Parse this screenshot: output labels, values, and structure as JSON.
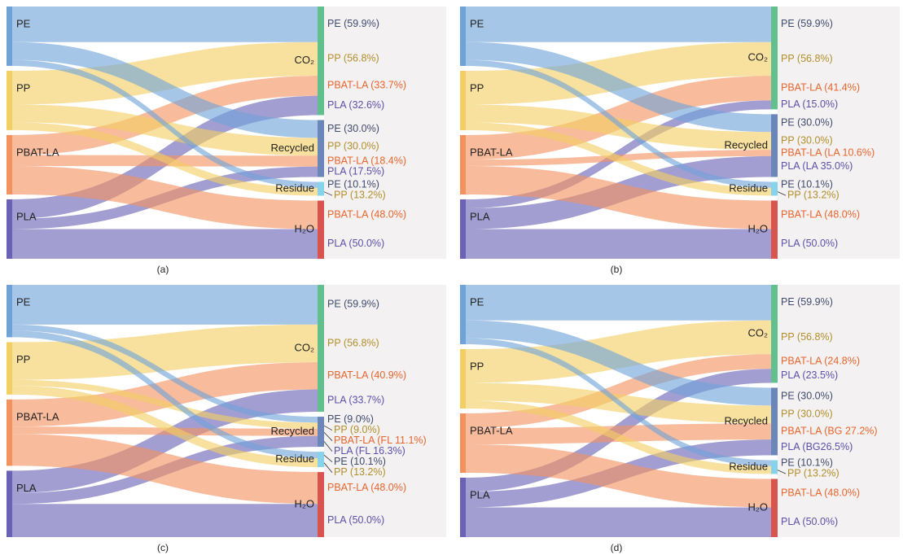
{
  "chart_data": [
    {
      "type": "sankey",
      "caption": "(a)",
      "sources": [
        "PE",
        "PP",
        "PBAT-LA",
        "PLA"
      ],
      "targets": [
        "CO₂",
        "Recycled",
        "Residue",
        "H₂O"
      ],
      "source_colors": [
        "#6fa3d8",
        "#f3cf63",
        "#f3925f",
        "#6a62b4"
      ],
      "target_colors": [
        "#62c08f",
        "#6b86b8",
        "#86d3ea",
        "#d9534f"
      ],
      "label_colors": [
        "#3f4b6e",
        "#b38f2c",
        "#e8652d",
        "#5b50a8"
      ],
      "links": [
        {
          "source": "PE",
          "target": "CO₂",
          "value": 59.9,
          "value_label": "PE (59.9%)"
        },
        {
          "source": "PP",
          "target": "CO₂",
          "value": 56.8,
          "value_label": "PP (56.8%)"
        },
        {
          "source": "PBAT-LA",
          "target": "CO₂",
          "value": 33.7,
          "value_label": "PBAT-LA (33.7%)"
        },
        {
          "source": "PLA",
          "target": "CO₂",
          "value": 32.6,
          "value_label": "PLA (32.6%)"
        },
        {
          "source": "PE",
          "target": "Recycled",
          "value": 30.0,
          "value_label": "PE (30.0%)"
        },
        {
          "source": "PP",
          "target": "Recycled",
          "value": 30.0,
          "value_label": "PP (30.0%)"
        },
        {
          "source": "PBAT-LA",
          "target": "Recycled",
          "value": 18.4,
          "value_label": "PBAT-LA (18.4%)"
        },
        {
          "source": "PLA",
          "target": "Recycled",
          "value": 17.5,
          "value_label": "PLA (17.5%)"
        },
        {
          "source": "PE",
          "target": "Residue",
          "value": 10.1,
          "value_label": "PE (10.1%)"
        },
        {
          "source": "PP",
          "target": "Residue",
          "value": 13.2,
          "value_label": "PP (13.2%)"
        },
        {
          "source": "PBAT-LA",
          "target": "H₂O",
          "value": 48.0,
          "value_label": "PBAT-LA (48.0%)"
        },
        {
          "source": "PLA",
          "target": "H₂O",
          "value": 50.0,
          "value_label": "PLA (50.0%)"
        }
      ]
    },
    {
      "type": "sankey",
      "caption": "(b)",
      "sources": [
        "PE",
        "PP",
        "PBAT-LA",
        "PLA"
      ],
      "targets": [
        "CO₂",
        "Recycled",
        "Residue",
        "H₂O"
      ],
      "source_colors": [
        "#6fa3d8",
        "#f3cf63",
        "#f3925f",
        "#6a62b4"
      ],
      "target_colors": [
        "#62c08f",
        "#6b86b8",
        "#86d3ea",
        "#d9534f"
      ],
      "label_colors": [
        "#3f4b6e",
        "#b38f2c",
        "#e8652d",
        "#5b50a8"
      ],
      "links": [
        {
          "source": "PE",
          "target": "CO₂",
          "value": 59.9,
          "value_label": "PE (59.9%)"
        },
        {
          "source": "PP",
          "target": "CO₂",
          "value": 56.8,
          "value_label": "PP (56.8%)"
        },
        {
          "source": "PBAT-LA",
          "target": "CO₂",
          "value": 41.4,
          "value_label": "PBAT-LA (41.4%)"
        },
        {
          "source": "PLA",
          "target": "CO₂",
          "value": 15.0,
          "value_label": "PLA (15.0%)"
        },
        {
          "source": "PE",
          "target": "Recycled",
          "value": 30.0,
          "value_label": "PE (30.0%)"
        },
        {
          "source": "PP",
          "target": "Recycled",
          "value": 30.0,
          "value_label": "PP (30.0%)"
        },
        {
          "source": "PBAT-LA",
          "target": "Recycled",
          "value": 10.6,
          "value_label": "PBAT-LA (LA 10.6%)"
        },
        {
          "source": "PLA",
          "target": "Recycled",
          "value": 35.0,
          "value_label": "PLA (LA 35.0%)"
        },
        {
          "source": "PE",
          "target": "Residue",
          "value": 10.1,
          "value_label": "PE (10.1%)"
        },
        {
          "source": "PP",
          "target": "Residue",
          "value": 13.2,
          "value_label": "PP (13.2%)"
        },
        {
          "source": "PBAT-LA",
          "target": "H₂O",
          "value": 48.0,
          "value_label": "PBAT-LA (48.0%)"
        },
        {
          "source": "PLA",
          "target": "H₂O",
          "value": 50.0,
          "value_label": "PLA (50.0%)"
        }
      ]
    },
    {
      "type": "sankey",
      "caption": "(c)",
      "sources": [
        "PE",
        "PP",
        "PBAT-LA",
        "PLA"
      ],
      "targets": [
        "CO₂",
        "Recycled",
        "Residue",
        "H₂O"
      ],
      "source_colors": [
        "#6fa3d8",
        "#f3cf63",
        "#f3925f",
        "#6a62b4"
      ],
      "target_colors": [
        "#62c08f",
        "#6b86b8",
        "#86d3ea",
        "#d9534f"
      ],
      "label_colors": [
        "#3f4b6e",
        "#b38f2c",
        "#e8652d",
        "#5b50a8"
      ],
      "links": [
        {
          "source": "PE",
          "target": "CO₂",
          "value": 59.9,
          "value_label": "PE (59.9%)"
        },
        {
          "source": "PP",
          "target": "CO₂",
          "value": 56.8,
          "value_label": "PP (56.8%)"
        },
        {
          "source": "PBAT-LA",
          "target": "CO₂",
          "value": 40.9,
          "value_label": "PBAT-LA (40.9%)"
        },
        {
          "source": "PLA",
          "target": "CO₂",
          "value": 33.7,
          "value_label": "PLA (33.7%)"
        },
        {
          "source": "PE",
          "target": "Recycled",
          "value": 9.0,
          "value_label": "PE (9.0%)"
        },
        {
          "source": "PP",
          "target": "Recycled",
          "value": 9.0,
          "value_label": "PP (9.0%)"
        },
        {
          "source": "PBAT-LA",
          "target": "Recycled",
          "value": 11.1,
          "value_label": "PBAT-LA (FL 11.1%)"
        },
        {
          "source": "PLA",
          "target": "Recycled",
          "value": 16.3,
          "value_label": "PLA (FL 16.3%)"
        },
        {
          "source": "PE",
          "target": "Residue",
          "value": 10.1,
          "value_label": "PE (10.1%)"
        },
        {
          "source": "PP",
          "target": "Residue",
          "value": 13.2,
          "value_label": "PP (13.2%)"
        },
        {
          "source": "PBAT-LA",
          "target": "H₂O",
          "value": 48.0,
          "value_label": "PBAT-LA (48.0%)"
        },
        {
          "source": "PLA",
          "target": "H₂O",
          "value": 50.0,
          "value_label": "PLA (50.0%)"
        }
      ]
    },
    {
      "type": "sankey",
      "caption": "(d)",
      "sources": [
        "PE",
        "PP",
        "PBAT-LA",
        "PLA"
      ],
      "targets": [
        "CO₂",
        "Recycled",
        "Residue",
        "H₂O"
      ],
      "source_colors": [
        "#6fa3d8",
        "#f3cf63",
        "#f3925f",
        "#6a62b4"
      ],
      "target_colors": [
        "#62c08f",
        "#6b86b8",
        "#86d3ea",
        "#d9534f"
      ],
      "label_colors": [
        "#3f4b6e",
        "#b38f2c",
        "#e8652d",
        "#5b50a8"
      ],
      "links": [
        {
          "source": "PE",
          "target": "CO₂",
          "value": 59.9,
          "value_label": "PE (59.9%)"
        },
        {
          "source": "PP",
          "target": "CO₂",
          "value": 56.8,
          "value_label": "PP (56.8%)"
        },
        {
          "source": "PBAT-LA",
          "target": "CO₂",
          "value": 24.8,
          "value_label": "PBAT-LA (24.8%)"
        },
        {
          "source": "PLA",
          "target": "CO₂",
          "value": 23.5,
          "value_label": "PLA (23.5%)"
        },
        {
          "source": "PE",
          "target": "Recycled",
          "value": 30.0,
          "value_label": "PE (30.0%)"
        },
        {
          "source": "PP",
          "target": "Recycled",
          "value": 30.0,
          "value_label": "PP (30.0%)"
        },
        {
          "source": "PBAT-LA",
          "target": "Recycled",
          "value": 27.2,
          "value_label": "PBAT-LA (BG 27.2%)"
        },
        {
          "source": "PLA",
          "target": "Recycled",
          "value": 26.5,
          "value_label": "PLA (BG26.5%)"
        },
        {
          "source": "PE",
          "target": "Residue",
          "value": 10.1,
          "value_label": "PE (10.1%)"
        },
        {
          "source": "PP",
          "target": "Residue",
          "value": 13.2,
          "value_label": "PP (13.2%)"
        },
        {
          "source": "PBAT-LA",
          "target": "H₂O",
          "value": 48.0,
          "value_label": "PBAT-LA (48.0%)"
        },
        {
          "source": "PLA",
          "target": "H₂O",
          "value": 50.0,
          "value_label": "PLA (50.0%)"
        }
      ]
    }
  ]
}
